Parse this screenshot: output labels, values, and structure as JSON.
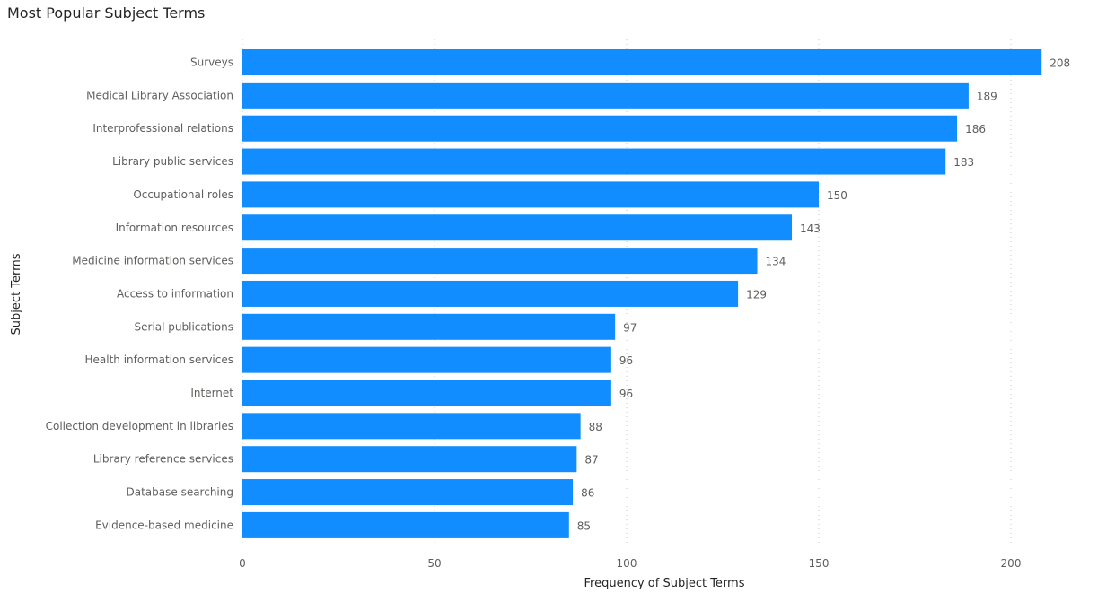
{
  "chart_data": {
    "type": "bar",
    "orientation": "horizontal",
    "title": "Most Popular Subject Terms",
    "xlabel": "Frequency of Subject Terms",
    "ylabel": "Subject Terms",
    "categories": [
      "Surveys",
      "Medical Library Association",
      "Interprofessional relations",
      "Library public services",
      "Occupational roles",
      "Information resources",
      "Medicine information services",
      "Access to information",
      "Serial publications",
      "Health information services",
      "Internet",
      "Collection development in libraries",
      "Library reference services",
      "Database searching",
      "Evidence-based medicine"
    ],
    "values": [
      208,
      189,
      186,
      183,
      150,
      143,
      134,
      129,
      97,
      96,
      96,
      88,
      87,
      86,
      85
    ],
    "xlim": [
      0,
      213
    ],
    "xticks": [
      0,
      50,
      100,
      150,
      200
    ],
    "grid": true,
    "legend": "none",
    "bar_color": "#118DFF"
  }
}
